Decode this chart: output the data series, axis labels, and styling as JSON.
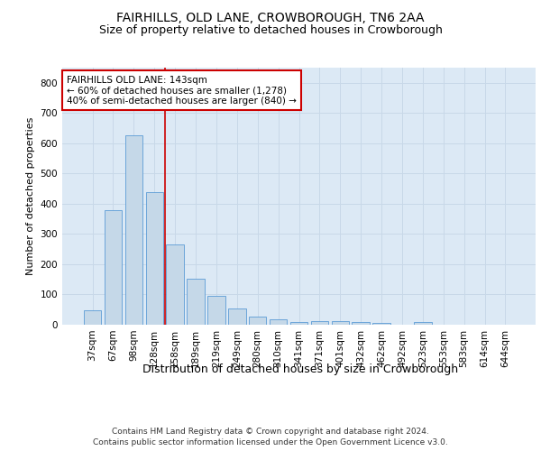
{
  "title1": "FAIRHILLS, OLD LANE, CROWBOROUGH, TN6 2AA",
  "title2": "Size of property relative to detached houses in Crowborough",
  "xlabel": "Distribution of detached houses by size in Crowborough",
  "ylabel": "Number of detached properties",
  "categories": [
    "37sqm",
    "67sqm",
    "98sqm",
    "128sqm",
    "158sqm",
    "189sqm",
    "219sqm",
    "249sqm",
    "280sqm",
    "310sqm",
    "341sqm",
    "371sqm",
    "401sqm",
    "432sqm",
    "462sqm",
    "492sqm",
    "523sqm",
    "553sqm",
    "583sqm",
    "614sqm",
    "644sqm"
  ],
  "values": [
    48,
    380,
    625,
    438,
    265,
    152,
    95,
    55,
    28,
    18,
    10,
    12,
    12,
    10,
    5,
    0,
    8,
    0,
    0,
    0,
    0
  ],
  "bar_color": "#c5d8e8",
  "bar_edge_color": "#5b9bd5",
  "bar_width": 0.85,
  "vline_pos": 3.5,
  "vline_color": "#cc0000",
  "annotation_text": "FAIRHILLS OLD LANE: 143sqm\n← 60% of detached houses are smaller (1,278)\n40% of semi-detached houses are larger (840) →",
  "annotation_box_color": "#ffffff",
  "annotation_box_edge": "#cc0000",
  "ylim": [
    0,
    850
  ],
  "yticks": [
    0,
    100,
    200,
    300,
    400,
    500,
    600,
    700,
    800
  ],
  "grid_color": "#c8d8e8",
  "background_color": "#dce9f5",
  "footer": "Contains HM Land Registry data © Crown copyright and database right 2024.\nContains public sector information licensed under the Open Government Licence v3.0.",
  "title1_fontsize": 10,
  "title2_fontsize": 9,
  "xlabel_fontsize": 9,
  "ylabel_fontsize": 8,
  "tick_fontsize": 7.5,
  "annotation_fontsize": 7.5,
  "footer_fontsize": 6.5
}
